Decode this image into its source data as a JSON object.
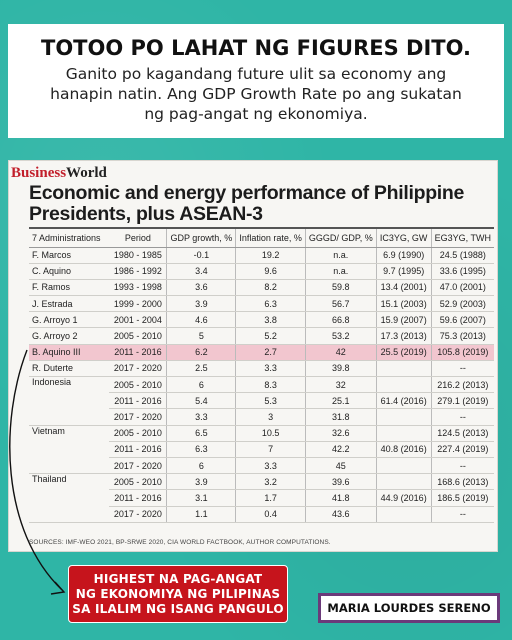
{
  "header": {
    "headline": "TOTOO PO LAHAT NG FIGURES DITO.",
    "subtext": "Ganito po kagandang future ulit sa economy ang hanapin natin. Ang GDP Growth Rate po ang sukatan ng pag-angat ng ekonomiya."
  },
  "article": {
    "brand_part1": "Business",
    "brand_part2": "World",
    "title": "Economic and energy performance of Philippine Presidents, plus ASEAN-3",
    "columns": [
      "7 Administrations",
      "Period",
      "GDP growth, %",
      "Inflation rate, %",
      "GGGD/ GDP, %",
      "IC3YG, GW",
      "EG3YG, TWH"
    ],
    "rows": [
      {
        "name": "F. Marcos",
        "period": "1980 - 1985",
        "gdp": "-0.1",
        "inflation": "19.2",
        "debt": "n.a.",
        "ic": "6.9 (1990)",
        "eg": "24.5 (1988)"
      },
      {
        "name": "C. Aquino",
        "period": "1986 - 1992",
        "gdp": "3.4",
        "inflation": "9.6",
        "debt": "n.a.",
        "ic": "9.7 (1995)",
        "eg": "33.6 (1995)"
      },
      {
        "name": "F. Ramos",
        "period": "1993 - 1998",
        "gdp": "3.6",
        "inflation": "8.2",
        "debt": "59.8",
        "ic": "13.4 (2001)",
        "eg": "47.0 (2001)"
      },
      {
        "name": "J. Estrada",
        "period": "1999 - 2000",
        "gdp": "3.9",
        "inflation": "6.3",
        "debt": "56.7",
        "ic": "15.1 (2003)",
        "eg": "52.9 (2003)"
      },
      {
        "name": "G. Arroyo 1",
        "period": "2001 - 2004",
        "gdp": "4.6",
        "inflation": "3.8",
        "debt": "66.8",
        "ic": "15.9 (2007)",
        "eg": "59.6 (2007)"
      },
      {
        "name": "G. Arroyo 2",
        "period": "2005 - 2010",
        "gdp": "5",
        "inflation": "5.2",
        "debt": "53.2",
        "ic": "17.3 (2013)",
        "eg": "75.3 (2013)"
      },
      {
        "name": "B. Aquino III",
        "period": "2011 - 2016",
        "gdp": "6.2",
        "inflation": "2.7",
        "debt": "42",
        "ic": "25.5 (2019)",
        "eg": "105.8 (2019)"
      },
      {
        "name": "R. Duterte",
        "period": "2017 - 2020",
        "gdp": "2.5",
        "inflation": "3.3",
        "debt": "39.8",
        "ic": "",
        "eg": "--"
      }
    ],
    "asean": [
      {
        "country": "Indonesia",
        "rows": [
          {
            "period": "2005 - 2010",
            "gdp": "6",
            "inflation": "8.3",
            "debt": "32",
            "ic": "",
            "eg": "216.2 (2013)"
          },
          {
            "period": "2011 - 2016",
            "gdp": "5.4",
            "inflation": "5.3",
            "debt": "25.1",
            "ic": "61.4 (2016)",
            "eg": "279.1 (2019)"
          },
          {
            "period": "2017 - 2020",
            "gdp": "3.3",
            "inflation": "3",
            "debt": "31.8",
            "ic": "",
            "eg": "--"
          }
        ]
      },
      {
        "country": "Vietnam",
        "rows": [
          {
            "period": "2005 - 2010",
            "gdp": "6.5",
            "inflation": "10.5",
            "debt": "32.6",
            "ic": "",
            "eg": "124.5 (2013)"
          },
          {
            "period": "2011 - 2016",
            "gdp": "6.3",
            "inflation": "7",
            "debt": "42.2",
            "ic": "40.8 (2016)",
            "eg": "227.4 (2019)"
          },
          {
            "period": "2017 - 2020",
            "gdp": "6",
            "inflation": "3.3",
            "debt": "45",
            "ic": "",
            "eg": "--"
          }
        ]
      },
      {
        "country": "Thailand",
        "rows": [
          {
            "period": "2005 - 2010",
            "gdp": "3.9",
            "inflation": "3.2",
            "debt": "39.6",
            "ic": "",
            "eg": "168.6 (2013)"
          },
          {
            "period": "2011 - 2016",
            "gdp": "3.1",
            "inflation": "1.7",
            "debt": "41.8",
            "ic": "44.9 (2016)",
            "eg": "186.5 (2019)"
          },
          {
            "period": "2017 - 2020",
            "gdp": "1.1",
            "inflation": "0.4",
            "debt": "43.6",
            "ic": "",
            "eg": "--"
          }
        ]
      }
    ],
    "highlight_row": 6,
    "sources": "SOURCES: IMF-WEO 2021, BP-SRWE 2020, CIA WORLD FACTBOOK, AUTHOR COMPUTATIONS."
  },
  "callout": {
    "text_line1": "HIGHEST NA PAG-ANGAT",
    "text_line2": "NG EKONOMIYA NG PILIPINAS",
    "text_line3": "SA ILALIM NG ISANG PANGULO",
    "author": "MARIA LOURDES SERENO"
  },
  "colors": {
    "background": "#2fb5a6",
    "highlight": "#f2c6cf",
    "callout_red": "#c6141c",
    "author_border": "#6b3a7a",
    "brand_red": "#c21e2a"
  }
}
